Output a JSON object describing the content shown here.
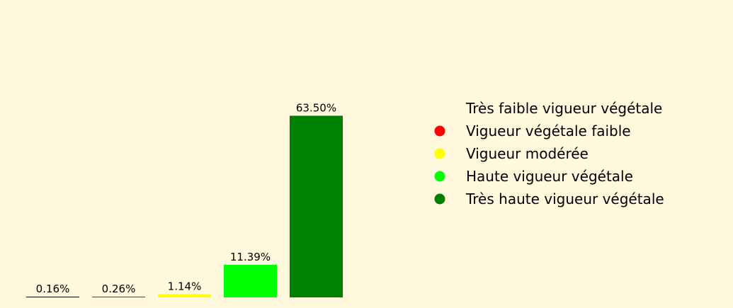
{
  "chart_data": {
    "type": "bar",
    "categories": [
      "Très faible vigueur végétale",
      "Vigueur végétale faible",
      "Vigueur modérée",
      "Haute vigueur végétale",
      "Très haute vigueur végétale"
    ],
    "values": [
      0.16,
      0.26,
      1.14,
      11.39,
      63.5
    ],
    "value_labels": [
      "0.16%",
      "0.26%",
      "1.14%",
      "11.39%",
      "63.50%"
    ],
    "colors": [
      "#000000",
      "#ff0000",
      "#ffff00",
      "#00ff00",
      "#008000"
    ],
    "legend_marker_colors": [
      "#fff8dc",
      "#ff0000",
      "#ffff00",
      "#00ff00",
      "#008000"
    ],
    "ylim": [
      0,
      100
    ],
    "grid": false,
    "legend_position": "right",
    "background": "#fff8dc"
  }
}
